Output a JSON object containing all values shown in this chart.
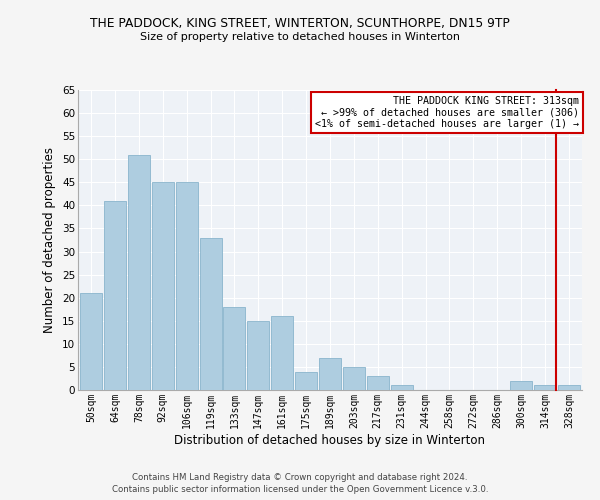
{
  "title": "THE PADDOCK, KING STREET, WINTERTON, SCUNTHORPE, DN15 9TP",
  "subtitle": "Size of property relative to detached houses in Winterton",
  "xlabel": "Distribution of detached houses by size in Winterton",
  "ylabel": "Number of detached properties",
  "bar_color": "#aecde0",
  "bar_edge_color": "#8ab4cc",
  "background_color": "#eef2f7",
  "grid_color": "#ffffff",
  "bin_labels": [
    "50sqm",
    "64sqm",
    "78sqm",
    "92sqm",
    "106sqm",
    "119sqm",
    "133sqm",
    "147sqm",
    "161sqm",
    "175sqm",
    "189sqm",
    "203sqm",
    "217sqm",
    "231sqm",
    "244sqm",
    "258sqm",
    "272sqm",
    "286sqm",
    "300sqm",
    "314sqm",
    "328sqm"
  ],
  "bar_heights": [
    21,
    41,
    51,
    45,
    45,
    33,
    18,
    15,
    16,
    4,
    7,
    5,
    3,
    1,
    0,
    0,
    0,
    0,
    2,
    1,
    1
  ],
  "ylim": [
    0,
    65
  ],
  "yticks": [
    0,
    5,
    10,
    15,
    20,
    25,
    30,
    35,
    40,
    45,
    50,
    55,
    60,
    65
  ],
  "vline_color": "#cc0000",
  "vline_bin_index": 19,
  "annotation_title": "THE PADDOCK KING STREET: 313sqm",
  "annotation_line1": "← >99% of detached houses are smaller (306)",
  "annotation_line2": "<1% of semi-detached houses are larger (1) →",
  "footnote1": "Contains HM Land Registry data © Crown copyright and database right 2024.",
  "footnote2": "Contains public sector information licensed under the Open Government Licence v.3.0."
}
